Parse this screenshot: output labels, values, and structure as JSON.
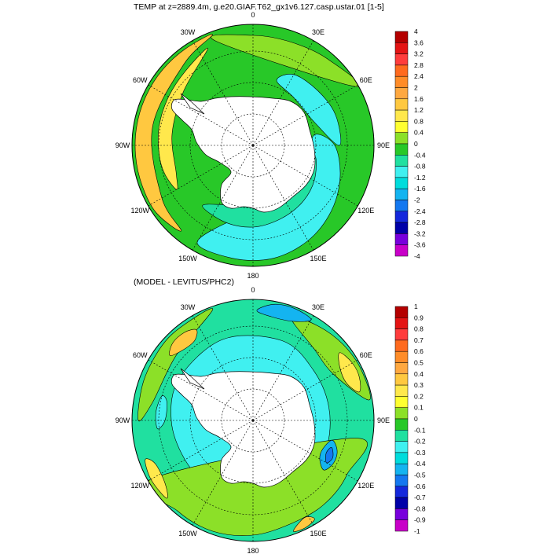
{
  "figure": {
    "top": {
      "title": "TEMP at z=2889.4m, g.e20.GIAF.T62_gx1v6.127.casp.ustar.01 [1-5]",
      "colorbar_labels": [
        "4",
        "3.6",
        "3.2",
        "2.8",
        "2.4",
        "2",
        "1.6",
        "1.2",
        "0.8",
        "0.4",
        "0",
        "-0.4",
        "-0.8",
        "-1.2",
        "-1.6",
        "-2",
        "-2.4",
        "-2.8",
        "-3.2",
        "-3.6",
        "-4"
      ],
      "colorbar_colors": [
        "#b40000",
        "#e41414",
        "#ff3c3c",
        "#ff6a1e",
        "#ff8c28",
        "#ffa840",
        "#ffc840",
        "#ffe84c",
        "#ffff30",
        "#8ce028",
        "#28c828",
        "#20e0a0",
        "#40f0f0",
        "#00dcdc",
        "#14b4f0",
        "#1478f0",
        "#1428dc",
        "#0000a8",
        "#7800dc",
        "#c800c8",
        "#dcdcdc"
      ]
    },
    "bottom": {
      "title": "(MODEL - LEVITUS/PHC2)",
      "colorbar_labels": [
        "1",
        "0.9",
        "0.8",
        "0.7",
        "0.6",
        "0.5",
        "0.4",
        "0.3",
        "0.2",
        "0.1",
        "0",
        "-0.1",
        "-0.2",
        "-0.3",
        "-0.4",
        "-0.5",
        "-0.6",
        "-0.7",
        "-0.8",
        "-0.9",
        "-1"
      ],
      "colorbar_colors": [
        "#b40000",
        "#e41414",
        "#ff3c3c",
        "#ff6a1e",
        "#ff8c28",
        "#ffa840",
        "#ffc840",
        "#ffe84c",
        "#ffff30",
        "#8ce028",
        "#28c828",
        "#20e0a0",
        "#40f0f0",
        "#00dcdc",
        "#14b4f0",
        "#1478f0",
        "#1428dc",
        "#0000a8",
        "#7800dc",
        "#c800c8",
        "#dcdcdc"
      ]
    },
    "lon_labels": [
      "0",
      "30E",
      "60E",
      "90E",
      "120E",
      "150E",
      "180",
      "150W",
      "120W",
      "90W",
      "60W",
      "30W"
    ],
    "projection": "south polar stereographic",
    "land_color": "#ffffff",
    "colorbar_bottom_color": "#777777"
  }
}
